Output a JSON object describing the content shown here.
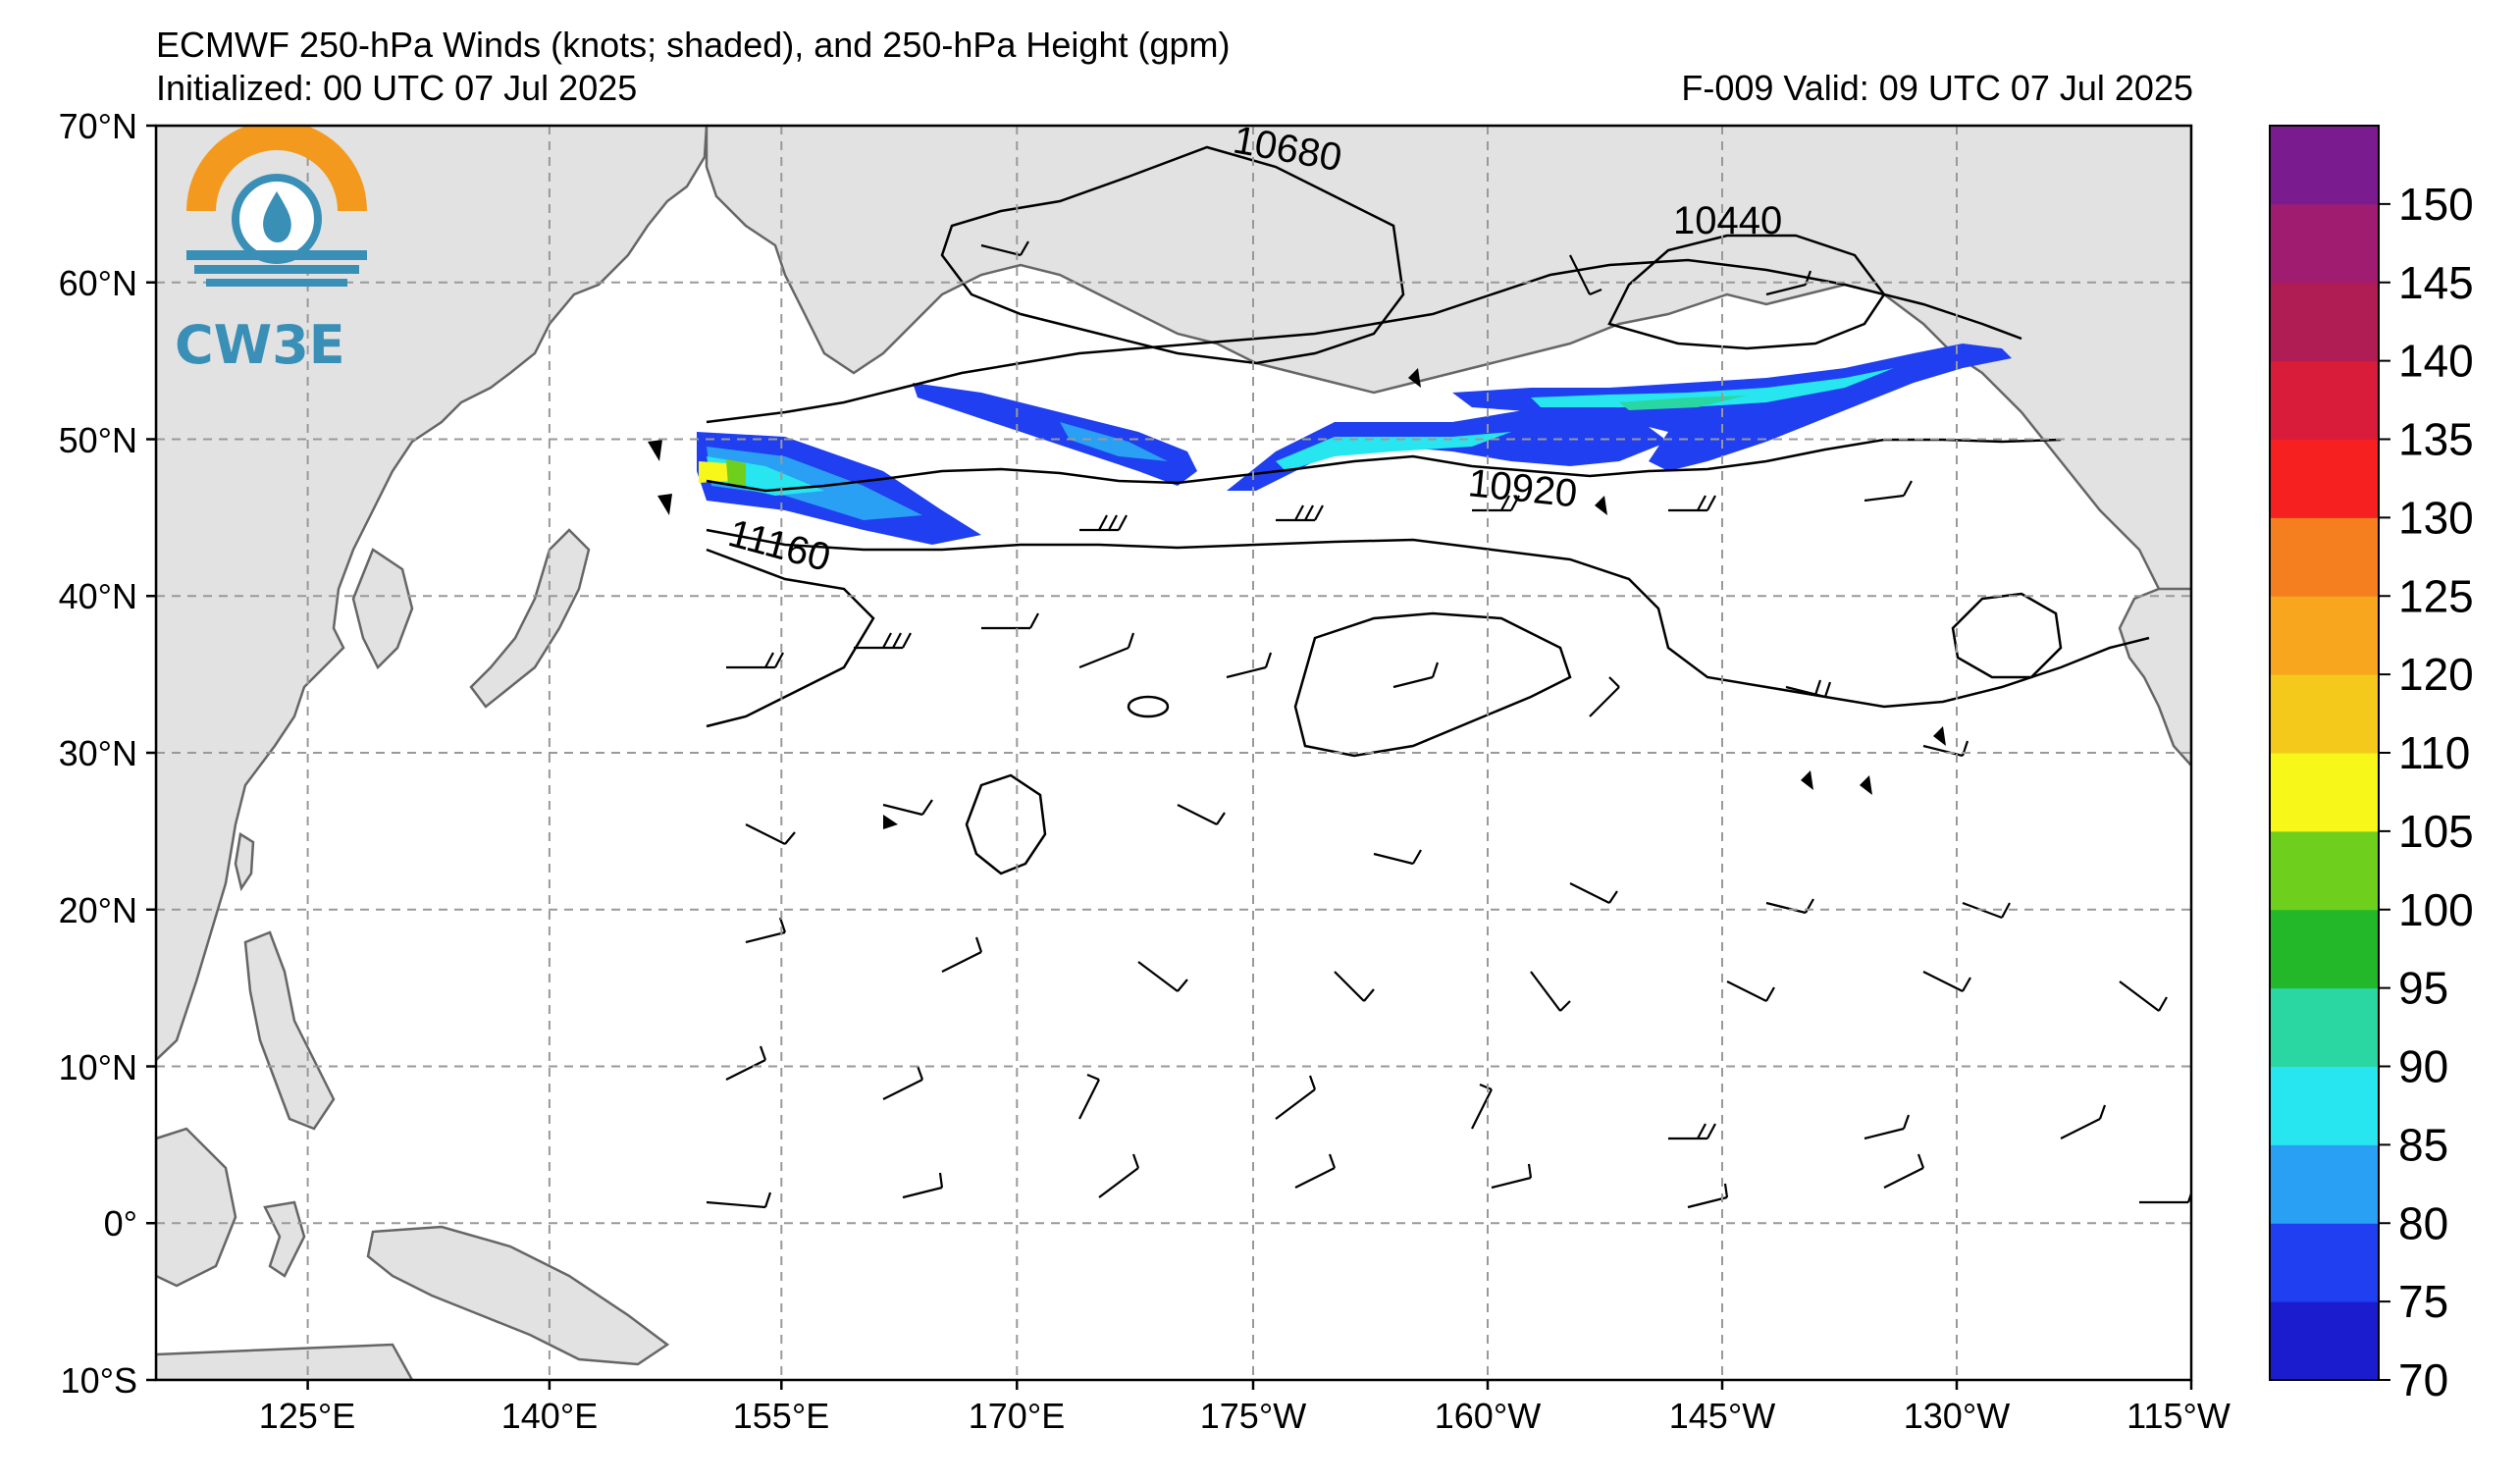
{
  "title": {
    "line1": "ECMWF 250-hPa Winds (knots; shaded), and 250-hPa Height (gpm)",
    "line2": "Initialized: 00 UTC 07 Jul 2025",
    "valid": "F-009  Valid: 09 UTC 07 Jul 2025"
  },
  "logo": {
    "text": "CW3E",
    "icon": "water-drop-sun-icon"
  },
  "axes": {
    "lat_labels": [
      "70°N",
      "60°N",
      "50°N",
      "40°N",
      "30°N",
      "20°N",
      "10°N",
      "0°",
      "10°S"
    ],
    "lon_labels": [
      "125°E",
      "140°E",
      "155°E",
      "170°E",
      "175°W",
      "160°W",
      "145°W",
      "130°W",
      "115°W"
    ],
    "lat_range": [
      -10,
      70
    ],
    "lon_range": [
      110,
      245
    ]
  },
  "contour_labels": [
    "10680",
    "10440",
    "10920",
    "11160"
  ],
  "colorbar": {
    "labels": [
      "70",
      "75",
      "80",
      "85",
      "90",
      "95",
      "100",
      "105",
      "110",
      "120",
      "125",
      "130",
      "135",
      "140",
      "145",
      "150"
    ],
    "colors": [
      "#1c1ccf",
      "#1f3ff0",
      "#2aa0f5",
      "#27e6f0",
      "#2ad7a3",
      "#22b82a",
      "#6fcf1d",
      "#f7f71a",
      "#f5c91c",
      "#f7a61d",
      "#f57f1f",
      "#f5201f",
      "#d81c3a",
      "#b01c54",
      "#a01c70",
      "#7a1c8f"
    ]
  },
  "colors": {
    "land": "#e2e2e2",
    "coast": "#666666",
    "grid": "#999999"
  }
}
